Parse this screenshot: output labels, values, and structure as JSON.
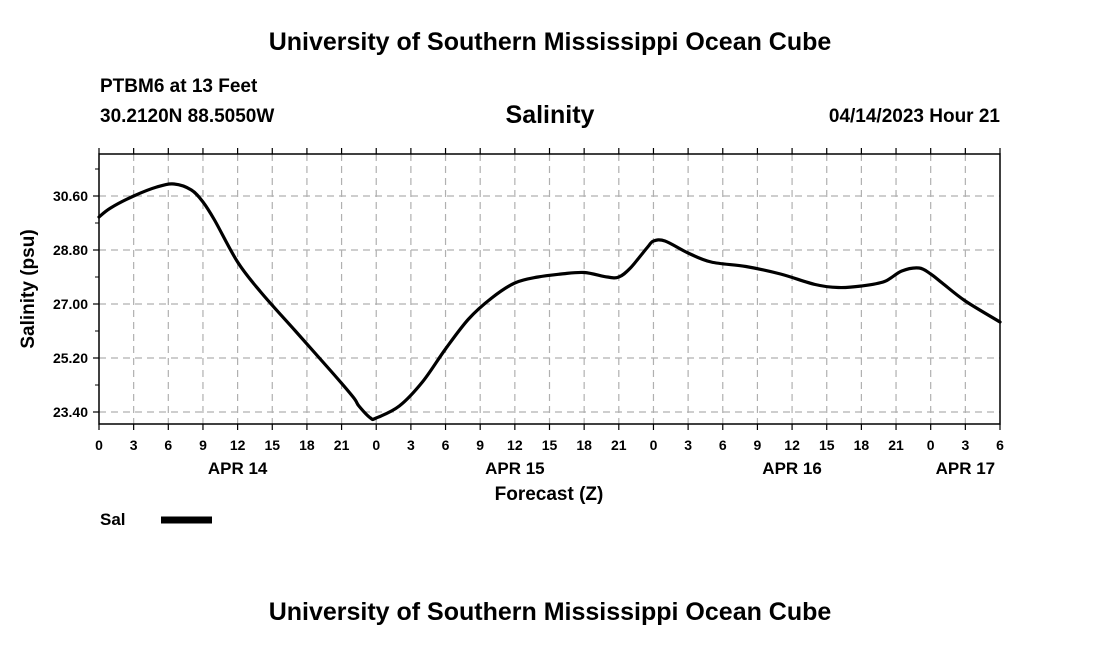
{
  "header": {
    "title": "University of Southern Mississippi Ocean Cube",
    "station": "PTBM6 at 13 Feet",
    "coords": "30.2120N  88.5050W",
    "variable": "Salinity",
    "datetime": "04/14/2023 Hour 21"
  },
  "footer": {
    "title": "University of Southern Mississippi Ocean Cube"
  },
  "colors": {
    "line": "#000000",
    "grid": "#b0b0b0",
    "background": "#ffffff"
  },
  "chart_data": {
    "type": "line",
    "xlabel": "Forecast (Z)",
    "ylabel": "Salinity (psu)",
    "x_unit": "forecast hour from 04/14/2023 00Z",
    "xlim": [
      0,
      78
    ],
    "ylim": [
      23.0,
      32.0
    ],
    "yticks": [
      23.4,
      25.2,
      27.0,
      28.8,
      30.6
    ],
    "ytick_labels": [
      "23.40",
      "25.20",
      "27.00",
      "28.80",
      "30.60"
    ],
    "xticks": [
      0,
      3,
      6,
      9,
      12,
      15,
      18,
      21,
      24,
      27,
      30,
      33,
      36,
      39,
      42,
      45,
      48,
      51,
      54,
      57,
      60,
      63,
      66,
      69,
      72,
      75,
      78
    ],
    "xtick_labels": [
      "0",
      "3",
      "6",
      "9",
      "12",
      "15",
      "18",
      "21",
      "0",
      "3",
      "6",
      "9",
      "12",
      "15",
      "18",
      "21",
      "0",
      "3",
      "6",
      "9",
      "12",
      "15",
      "18",
      "21",
      "0",
      "3",
      "6"
    ],
    "date_labels": [
      {
        "x": 12,
        "label": "APR 14"
      },
      {
        "x": 36,
        "label": "APR 15"
      },
      {
        "x": 60,
        "label": "APR 16"
      },
      {
        "x": 75,
        "label": "APR 17"
      }
    ],
    "grid": true,
    "legend": "bottom-left",
    "series": [
      {
        "name": "Sal",
        "x": [
          0,
          1,
          3,
          5,
          6.5,
          8,
          9,
          10,
          12,
          14,
          17,
          20,
          22,
          22.5,
          23.5,
          24,
          26,
          28,
          30,
          32,
          34,
          36,
          38,
          40,
          42,
          44,
          45,
          46,
          47.5,
          48,
          49,
          51,
          53,
          56,
          59,
          62,
          64,
          66,
          68,
          69.5,
          71,
          72,
          73,
          75,
          78
        ],
        "y": [
          29.9,
          30.2,
          30.6,
          30.9,
          31.0,
          30.8,
          30.4,
          29.8,
          28.4,
          27.4,
          26.1,
          24.8,
          23.9,
          23.6,
          23.2,
          23.2,
          23.6,
          24.4,
          25.5,
          26.5,
          27.2,
          27.7,
          27.9,
          28.0,
          28.05,
          27.9,
          27.9,
          28.2,
          28.9,
          29.1,
          29.1,
          28.7,
          28.4,
          28.25,
          28.0,
          27.65,
          27.55,
          27.6,
          27.75,
          28.1,
          28.2,
          28.0,
          27.7,
          27.1,
          26.4
        ]
      }
    ]
  }
}
